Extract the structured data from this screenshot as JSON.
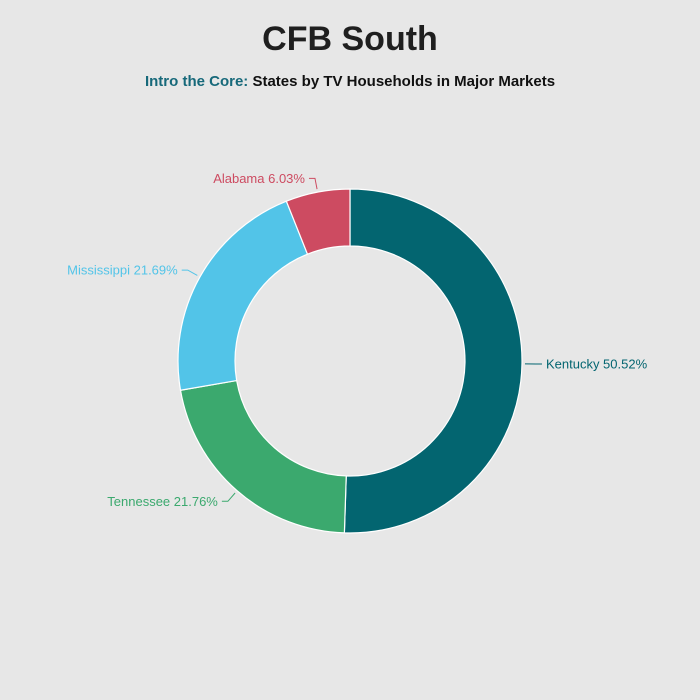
{
  "title": "CFB South",
  "subtitle": {
    "prefix": "Intro the Core:",
    "text": "States by TV Households in Major Markets"
  },
  "colors": {
    "background": "#e7e7e7",
    "subtitle_accent": "#17697a"
  },
  "chart_data": {
    "type": "pie",
    "donut": true,
    "start": "top",
    "direction": "clockwise",
    "slices": [
      {
        "label": "Kentucky",
        "display": "Kentucky 50.52%",
        "value": 50.52,
        "color": "#036570"
      },
      {
        "label": "Tennessee",
        "display": "Tennessee 21.76%",
        "value": 21.76,
        "color": "#3ba96e"
      },
      {
        "label": "Mississippi",
        "display": "Mississippi 21.69%",
        "value": 21.69,
        "color": "#52c4e8"
      },
      {
        "label": "Alabama",
        "display": "Alabama 6.03%",
        "value": 6.03,
        "color": "#cd4b61"
      }
    ]
  }
}
